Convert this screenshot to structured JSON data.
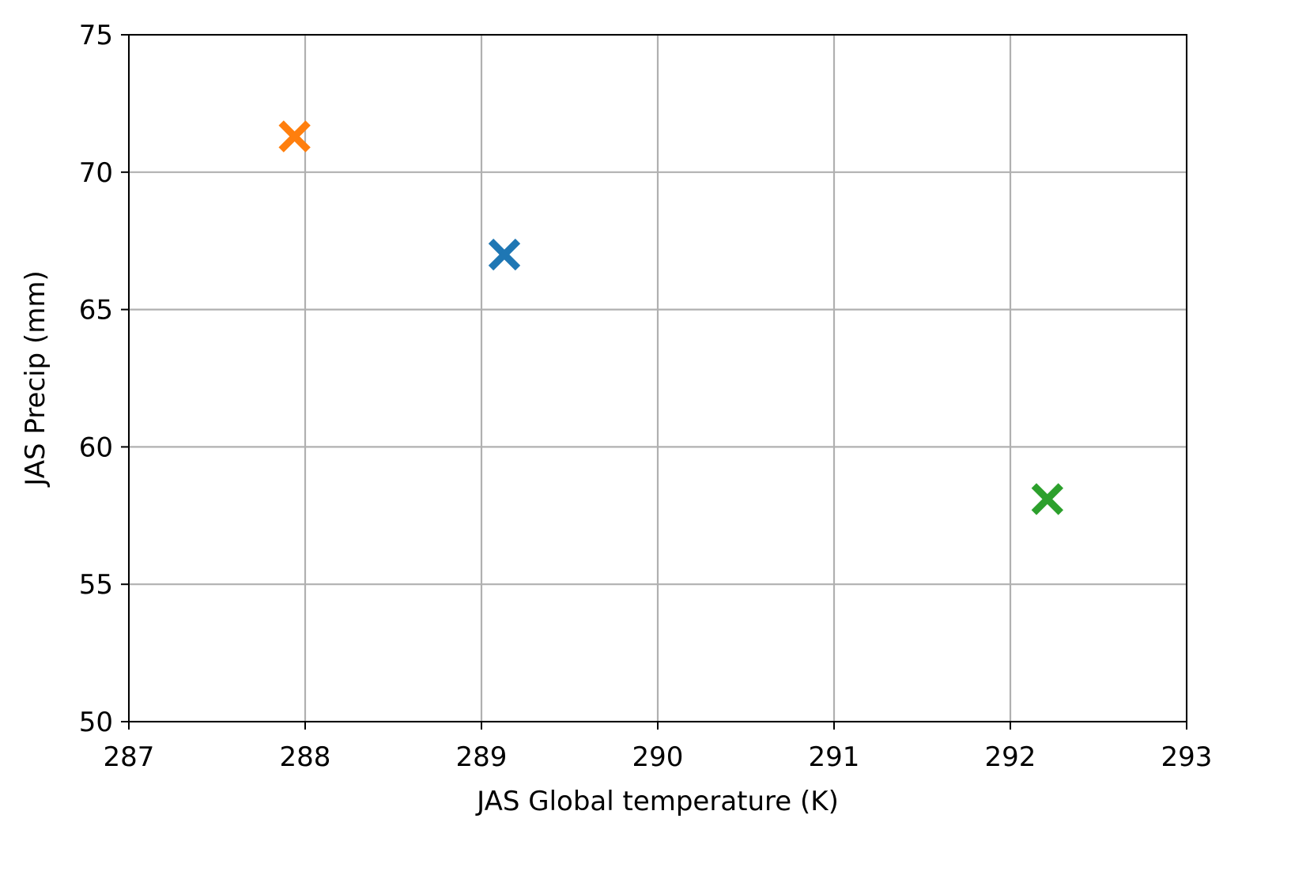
{
  "chart_data": {
    "type": "scatter",
    "title": "",
    "xlabel": "JAS Global temperature (K)",
    "ylabel": "JAS Precip (mm)",
    "xlim": [
      287,
      293
    ],
    "ylim": [
      50,
      75
    ],
    "xticks": [
      287,
      288,
      289,
      290,
      291,
      292,
      293
    ],
    "yticks": [
      50,
      55,
      60,
      65,
      70,
      75
    ],
    "grid": true,
    "legend": "none",
    "marker": "x",
    "points": [
      {
        "x": 289.13,
        "y": 67.0,
        "color": "#1f77b4"
      },
      {
        "x": 287.94,
        "y": 71.3,
        "color": "#ff7f0e"
      },
      {
        "x": 292.21,
        "y": 58.1,
        "color": "#2ca02c"
      }
    ]
  }
}
